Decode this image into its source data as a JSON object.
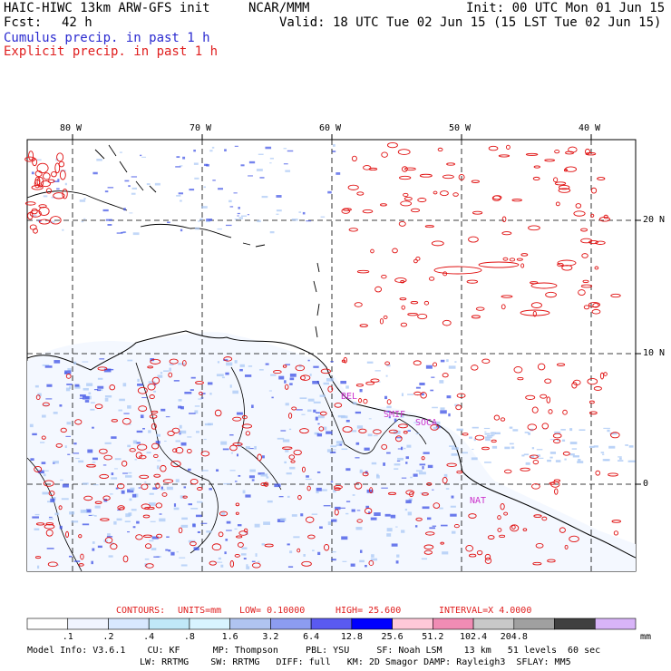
{
  "header": {
    "model_title": "HAIC-HIWC 13km ARW-GFS init",
    "org": "NCAR/MMM",
    "init": "Init: 00 UTC Mon 01 Jun 15",
    "fcst_label": "Fcst:",
    "fcst_value": "42 h",
    "valid": "Valid: 18 UTC Tue 02 Jun 15 (15 LST Tue 02 Jun 15)",
    "field1": "Cumulus precip. in past 1 h",
    "field2": "Explicit precip. in past 1 h"
  },
  "map": {
    "lon_labels": [
      "80 W",
      "70 W",
      "60 W",
      "50 W",
      "40 W"
    ],
    "lat_labels": [
      "20 N",
      "10 N",
      "0"
    ],
    "station_labels": [
      "BEL",
      "SMIF",
      "SOCA",
      "NAT"
    ],
    "colors": {
      "cumulus": "#3c50e6",
      "cumulus_light": "#aac8f5",
      "explicit": "#e01010",
      "coast": "#000000",
      "station": "#cc33cc"
    }
  },
  "contours": {
    "label": "CONTOURS:",
    "units": "UNITS=mm",
    "low": "LOW= 0.10000",
    "high": "HIGH= 25.600",
    "interval": "INTERVAL=X 4.0000"
  },
  "colorbar": {
    "labels": [
      ".1",
      ".2",
      ".4",
      ".8",
      "1.6",
      "3.2",
      "6.4",
      "12.8",
      "25.6",
      "51.2",
      "102.4",
      "204.8"
    ],
    "unit": "mm",
    "colors": [
      "#ffffff",
      "#f0f4ff",
      "#d8e8ff",
      "#c0e8f8",
      "#d8f4ff",
      "#b0c4f0",
      "#8c9cf0",
      "#5a5af0",
      "#0000ff",
      "#ffc8d8",
      "#f08cb4",
      "#c8c8c8",
      "#a0a0a0",
      "#404040",
      "#d8b4f8"
    ]
  },
  "footer": {
    "line1": "Model Info: V3.6.1    CU: KF      MP: Thompson     PBL: YSU     SF: Noah LSM    13 km   51 levels  60 sec",
    "line2": "LW: RRTMG    SW: RRTMG   DIFF: full   KM: 2D Smagor DAMP: Rayleigh3  SFLAY: MM5"
  }
}
